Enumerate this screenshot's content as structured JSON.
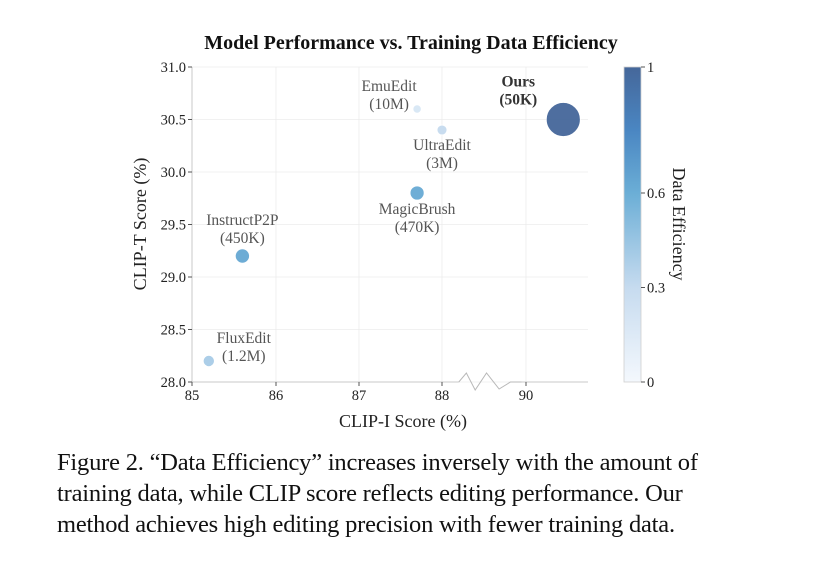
{
  "chart_data": {
    "type": "scatter",
    "title": "Model Performance vs. Training Data Efficiency",
    "xlabel": "CLIP-I Score (%)",
    "ylabel": "CLIP-T Score (%)",
    "xticks": [
      85,
      86,
      87,
      88,
      90
    ],
    "xtick_labels": [
      "85",
      "86",
      "87",
      "88",
      "90"
    ],
    "xaxis_break": [
      88.4,
      89.9
    ],
    "yticks": [
      28.0,
      28.5,
      29.0,
      29.5,
      30.0,
      30.5,
      31.0
    ],
    "ytick_labels": [
      "28.0",
      "28.5",
      "29.0",
      "29.5",
      "30.0",
      "30.5",
      "31.0"
    ],
    "xlim": [
      85,
      90.7
    ],
    "ylim": [
      28.0,
      31.0
    ],
    "grid": true,
    "colorbar": {
      "label": "Data Efficiency",
      "range": [
        0,
        1
      ],
      "ticks": [
        0,
        0.3,
        0.6,
        1
      ],
      "tick_labels": [
        "0",
        "0.3",
        "0.6",
        "1"
      ],
      "colormap": [
        "#f4f8fd",
        "#c6dbef",
        "#6baed6",
        "#4a86c2",
        "#45679a"
      ]
    },
    "points": [
      {
        "name": "EmuEdit",
        "data": "(10M)",
        "x": 87.7,
        "y": 30.6,
        "efficiency": 0.18,
        "bold": false
      },
      {
        "name": "UltraEdit",
        "data": "(3M)",
        "x": 88.0,
        "y": 30.4,
        "efficiency": 0.3,
        "bold": false
      },
      {
        "name": "Ours",
        "data": "(50K)",
        "x": 90.45,
        "y": 30.5,
        "efficiency": 1.0,
        "bold": true
      },
      {
        "name": "MagicBrush",
        "data": "(470K)",
        "x": 87.7,
        "y": 29.8,
        "efficiency": 0.62,
        "bold": false
      },
      {
        "name": "InstructP2P",
        "data": "(450K)",
        "x": 85.6,
        "y": 29.2,
        "efficiency": 0.63,
        "bold": false
      },
      {
        "name": "FluxEdit",
        "data": "(1.2M)",
        "x": 85.2,
        "y": 28.2,
        "efficiency": 0.4,
        "bold": false
      }
    ]
  },
  "caption": {
    "lines": [
      "Figure 2. “Data Efficiency” increases inversely with the amount of",
      "training data, while CLIP score reflects editing performance.  Our",
      "method achieves high editing precision with fewer training data."
    ]
  }
}
